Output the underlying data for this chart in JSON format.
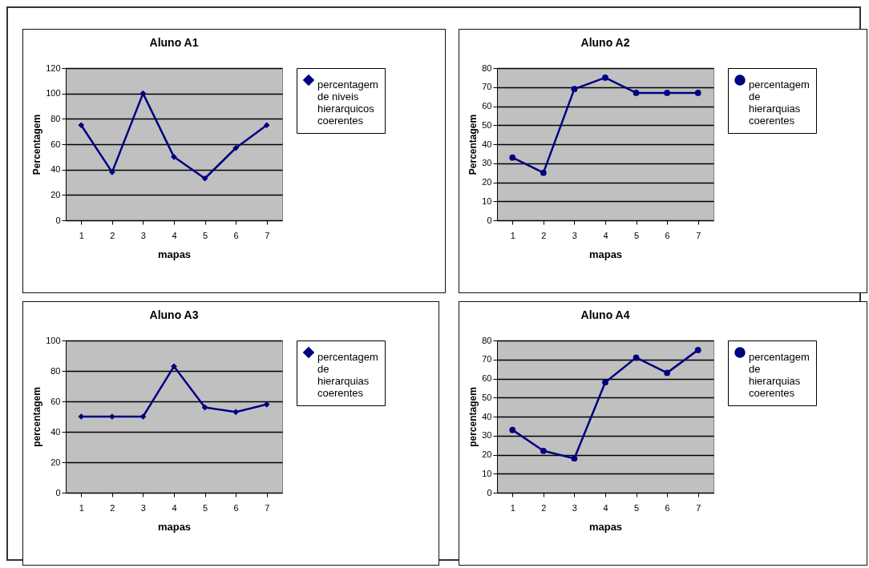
{
  "chart_data": [
    {
      "type": "line",
      "title": "Aluno A1",
      "xlabel": "mapas",
      "ylabel": "Percentagem",
      "categories": [
        "1",
        "2",
        "3",
        "4",
        "5",
        "6",
        "7"
      ],
      "ylim": [
        0,
        120
      ],
      "yticks": [
        0,
        20,
        40,
        60,
        80,
        100,
        120
      ],
      "grid": "y",
      "legend": "right",
      "marker": "diamond",
      "series": [
        {
          "name": "percentagem de niveis hierarquicos coerentes",
          "color": "#000080",
          "values": [
            75,
            38,
            100,
            50,
            33,
            57,
            75
          ]
        }
      ]
    },
    {
      "type": "line",
      "title": "Aluno A2",
      "xlabel": "mapas",
      "ylabel": "Percentagem",
      "categories": [
        "1",
        "2",
        "3",
        "4",
        "5",
        "6",
        "7"
      ],
      "ylim": [
        0,
        80
      ],
      "yticks": [
        0,
        10,
        20,
        30,
        40,
        50,
        60,
        70,
        80
      ],
      "grid": "y",
      "legend": "right",
      "marker": "circle",
      "series": [
        {
          "name": "percentagem de hierarquias coerentes",
          "color": "#000080",
          "values": [
            33,
            25,
            69,
            75,
            67,
            67,
            67
          ]
        }
      ]
    },
    {
      "type": "line",
      "title": "Aluno A3",
      "xlabel": "mapas",
      "ylabel": "percentagem",
      "categories": [
        "1",
        "2",
        "3",
        "4",
        "5",
        "6",
        "7"
      ],
      "ylim": [
        0,
        100
      ],
      "yticks": [
        0,
        20,
        40,
        60,
        80,
        100
      ],
      "grid": "y",
      "legend": "right",
      "marker": "diamond",
      "series": [
        {
          "name": "percentagem de hierarquias coerentes",
          "color": "#000080",
          "values": [
            50,
            50,
            50,
            83,
            56,
            53,
            58
          ]
        }
      ]
    },
    {
      "type": "line",
      "title": "Aluno A4",
      "xlabel": "mapas",
      "ylabel": "percentagem",
      "categories": [
        "1",
        "2",
        "3",
        "4",
        "5",
        "6",
        "7"
      ],
      "ylim": [
        0,
        80
      ],
      "yticks": [
        0,
        10,
        20,
        30,
        40,
        50,
        60,
        70,
        80
      ],
      "grid": "y",
      "legend": "right",
      "marker": "circle",
      "series": [
        {
          "name": "percentagem de hierarquias coerentes",
          "color": "#000080",
          "values": [
            33,
            22,
            18,
            58,
            71,
            63,
            75
          ]
        }
      ]
    }
  ]
}
